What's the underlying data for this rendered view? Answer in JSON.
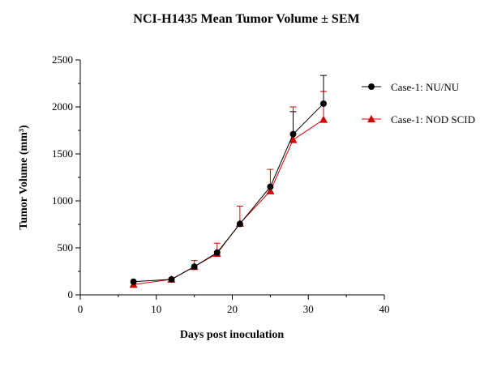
{
  "chart_data": {
    "type": "line",
    "title": "NCI-H1435 Mean Tumor Volume ± SEM",
    "xlabel": "Days post inoculation",
    "ylabel": "Tumor Volume (mm³)",
    "xlim": [
      0,
      40
    ],
    "ylim": [
      0,
      2500
    ],
    "xticks": [
      0,
      10,
      20,
      30,
      40
    ],
    "yticks": [
      0,
      500,
      1000,
      1500,
      2000,
      2500
    ],
    "grid": false,
    "legend_position": "right",
    "series": [
      {
        "name": "Case-1: NU/NU",
        "color": "#000000",
        "marker": "circle",
        "x": [
          7,
          12,
          15,
          18,
          21,
          25,
          28,
          32
        ],
        "y": [
          140,
          165,
          300,
          450,
          755,
          1150,
          1710,
          2035
        ],
        "err": [
          0,
          0,
          0,
          0,
          0,
          0,
          240,
          300
        ]
      },
      {
        "name": "Case-1: NOD SCID",
        "color": "#d40000",
        "marker": "triangle",
        "x": [
          7,
          12,
          15,
          18,
          21,
          25,
          28,
          32
        ],
        "y": [
          110,
          165,
          300,
          440,
          760,
          1105,
          1650,
          1865
        ],
        "err": [
          0,
          0,
          65,
          110,
          185,
          230,
          350,
          300
        ]
      }
    ]
  }
}
